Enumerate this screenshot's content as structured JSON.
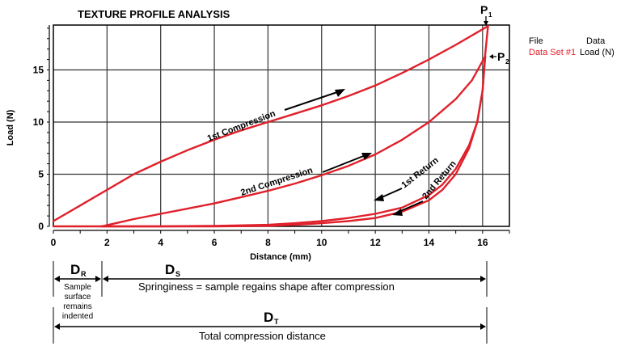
{
  "chart_data": {
    "type": "line",
    "title": "TEXTURE PROFILE ANALYSIS",
    "xlabel": "Distance (mm)",
    "ylabel": "Load (N)",
    "xlim": [
      0,
      17
    ],
    "ylim": [
      0,
      19.3
    ],
    "xticks": [
      0,
      2,
      4,
      6,
      8,
      10,
      12,
      14,
      16
    ],
    "yticks": [
      0,
      5,
      10,
      15
    ],
    "grid": true,
    "legend": {
      "header": [
        "File",
        "Data"
      ],
      "entries": [
        {
          "file": "Data Set #1",
          "data": "Load (N)"
        }
      ],
      "position": "right"
    },
    "series": [
      {
        "name": "1st Compression",
        "x": [
          0,
          1,
          2,
          3,
          4,
          5,
          6,
          7,
          8,
          9,
          10,
          11,
          12,
          13,
          14,
          15,
          16.2
        ],
        "y": [
          0.5,
          2.0,
          3.5,
          5.0,
          6.2,
          7.3,
          8.3,
          9.2,
          10.0,
          10.8,
          11.6,
          12.5,
          13.5,
          14.7,
          16.0,
          17.4,
          19.2
        ]
      },
      {
        "name": "1st Return",
        "x": [
          16.2,
          16.1,
          16.0,
          15.8,
          15.5,
          15.0,
          14.5,
          14.0,
          13.0,
          12.0,
          11.0,
          10.0,
          9.0,
          8.0,
          6.0,
          4.0,
          2.0,
          1.8
        ],
        "y": [
          19.2,
          16.5,
          13.0,
          10.0,
          7.8,
          5.5,
          4.0,
          3.0,
          1.8,
          1.2,
          0.8,
          0.5,
          0.3,
          0.15,
          0.05,
          0,
          0,
          0
        ]
      },
      {
        "name": "2nd Compression",
        "x": [
          1.8,
          2.5,
          3,
          4,
          5,
          6,
          7,
          8,
          9,
          10,
          11,
          12,
          13,
          14,
          15,
          15.6,
          16.1
        ],
        "y": [
          0,
          0.4,
          0.7,
          1.2,
          1.7,
          2.2,
          2.8,
          3.4,
          4.1,
          4.9,
          5.8,
          6.9,
          8.3,
          10.0,
          12.2,
          14.0,
          16.3
        ]
      },
      {
        "name": "2nd Return",
        "x": [
          16.1,
          16.0,
          15.8,
          15.5,
          15.0,
          14.5,
          14.0,
          13.0,
          12.0,
          11.0,
          10.0,
          9.0,
          8.0,
          6.0,
          4.0,
          2.0,
          0.0
        ],
        "y": [
          16.3,
          13.0,
          10.0,
          7.5,
          5.0,
          3.5,
          2.5,
          1.4,
          0.8,
          0.5,
          0.3,
          0.15,
          0.05,
          0,
          0,
          0,
          0
        ]
      }
    ],
    "annotations": [
      {
        "text": "1st Compression",
        "arrow": "up-right"
      },
      {
        "text": "2nd Compression",
        "arrow": "up-right"
      },
      {
        "text": "1st Return",
        "arrow": "down-left"
      },
      {
        "text": "2nd Return",
        "arrow": "down-left"
      },
      {
        "text": "P1",
        "x": 16.2,
        "y": 19.2,
        "desc": "first compression peak"
      },
      {
        "text": "P2",
        "x": 16.1,
        "y": 16.3,
        "desc": "second compression peak"
      }
    ],
    "distance_bars": [
      {
        "label": "D",
        "sub": "R",
        "from": 0,
        "to": 1.8,
        "caption": [
          "Sample",
          "surface",
          "remains",
          "indented"
        ]
      },
      {
        "label": "D",
        "sub": "S",
        "from": 1.8,
        "to": 16.2,
        "caption": [
          "Springiness = sample regains shape after compression"
        ]
      },
      {
        "label": "D",
        "sub": "T",
        "from": 0,
        "to": 16.2,
        "caption": [
          "Total compression distance"
        ]
      }
    ]
  },
  "legend": {
    "file_header": "File",
    "data_header": "Data",
    "file_value": "Data Set #1",
    "data_value": "Load (N)"
  },
  "colors": {
    "curve": "#e0202a",
    "axis": "#000000",
    "grid": "#333333"
  }
}
